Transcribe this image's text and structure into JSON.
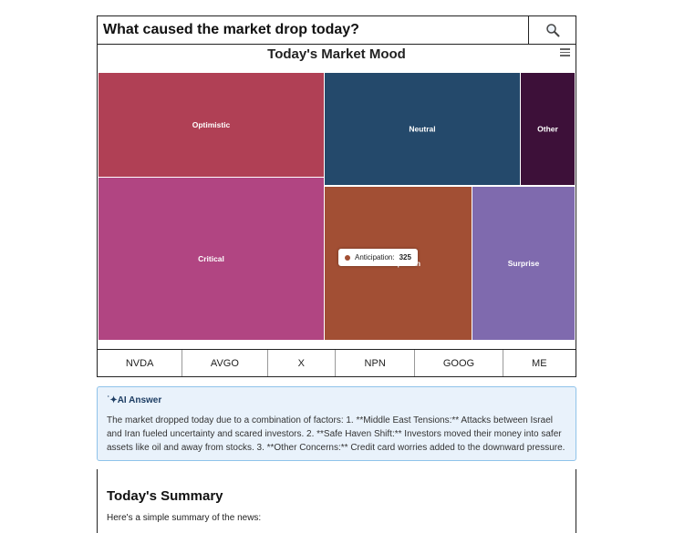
{
  "search": {
    "query": "What caused the market drop today?",
    "icon": "magnifier-icon"
  },
  "chart": {
    "title": "Today's Market Mood",
    "menu_icon": "hamburger-menu-icon"
  },
  "chart_data": {
    "type": "treemap",
    "title": "Today's Market Mood",
    "series": [
      {
        "name": "Optimistic",
        "color": "#b04055"
      },
      {
        "name": "Neutral",
        "color": "#24496b"
      },
      {
        "name": "Other",
        "color": "#3d1039"
      },
      {
        "name": "Critical",
        "color": "#b14582"
      },
      {
        "name": "Anticipation",
        "value": 325,
        "color": "#a24f34"
      },
      {
        "name": "Surprise",
        "color": "#7f6aae"
      }
    ]
  },
  "tooltip": {
    "label": "Anticipation:",
    "value": "325",
    "color": "#a24f34"
  },
  "tickers": [
    "NVDA",
    "AVGO",
    "X",
    "NPN",
    "GOOG",
    "ME"
  ],
  "ai": {
    "title": "˙✦AI Answer",
    "text": "The market dropped today due to a combination of factors: 1. **Middle East Tensions:** Attacks between Israel and Iran fueled uncertainty and scared investors. 2. **Safe Haven Shift:** Investors moved their money into safer assets like oil and away from stocks. 3. **Other Concerns:** Credit card worries added to the downward pressure."
  },
  "summary": {
    "title": "Today's Summary",
    "text": "Here's a simple summary of the news:"
  }
}
